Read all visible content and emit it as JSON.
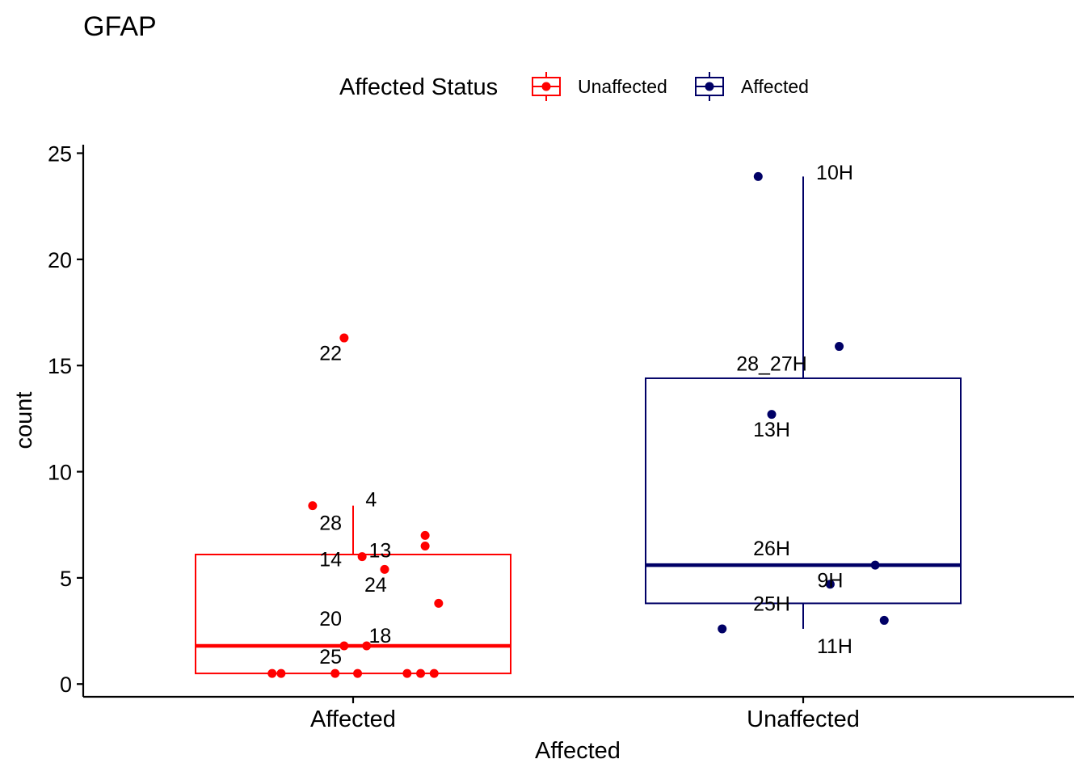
{
  "chart_data": {
    "type": "boxplot",
    "title": "GFAP",
    "xlabel": "Affected",
    "ylabel": "count",
    "ylim": [
      -0.6,
      25.4
    ],
    "yticks": [
      0,
      5,
      10,
      15,
      20,
      25
    ],
    "categories": [
      "Affected",
      "Unaffected"
    ],
    "legend": {
      "title": "Affected Status",
      "position": "top",
      "entries": [
        {
          "label": "Unaffected",
          "color": "#ff0000"
        },
        {
          "label": "Affected",
          "color": "#000066"
        }
      ]
    },
    "series": [
      {
        "name": "Unaffected",
        "category": "Affected",
        "color": "#ff0000",
        "box": {
          "q1": 0.5,
          "median": 1.8,
          "q3": 6.1,
          "whisker_low": 0.5,
          "whisker_high": 8.4
        },
        "points": [
          {
            "x": -0.02,
            "y": 16.3,
            "label": ""
          },
          {
            "x": -0.09,
            "y": 8.4,
            "label": ""
          },
          {
            "x": 0.16,
            "y": 7.0,
            "label": ""
          },
          {
            "x": 0.16,
            "y": 6.5,
            "label": ""
          },
          {
            "x": 0.02,
            "y": 6.0,
            "label": ""
          },
          {
            "x": 0.07,
            "y": 5.4,
            "label": ""
          },
          {
            "x": 0.19,
            "y": 3.8,
            "label": ""
          },
          {
            "x": -0.02,
            "y": 1.8,
            "label": ""
          },
          {
            "x": 0.03,
            "y": 1.8,
            "label": ""
          },
          {
            "x": -0.18,
            "y": 0.5,
            "label": ""
          },
          {
            "x": -0.16,
            "y": 0.5,
            "label": ""
          },
          {
            "x": -0.04,
            "y": 0.5,
            "label": ""
          },
          {
            "x": 0.01,
            "y": 0.5,
            "label": ""
          },
          {
            "x": 0.12,
            "y": 0.5,
            "label": ""
          },
          {
            "x": 0.15,
            "y": 0.5,
            "label": ""
          },
          {
            "x": 0.18,
            "y": 0.5,
            "label": ""
          }
        ],
        "annotations": [
          {
            "text": "22",
            "x": -0.05,
            "y": 15.6
          },
          {
            "text": "4",
            "x": 0.04,
            "y": 8.7
          },
          {
            "text": "28",
            "x": -0.05,
            "y": 7.6
          },
          {
            "text": "13",
            "x": 0.06,
            "y": 6.3
          },
          {
            "text": "14",
            "x": -0.05,
            "y": 5.9
          },
          {
            "text": "24",
            "x": 0.05,
            "y": 4.7
          },
          {
            "text": "20",
            "x": -0.05,
            "y": 3.1
          },
          {
            "text": "18",
            "x": 0.06,
            "y": 2.3
          },
          {
            "text": "25",
            "x": -0.05,
            "y": 1.3
          }
        ]
      },
      {
        "name": "Affected",
        "category": "Unaffected",
        "color": "#000066",
        "box": {
          "q1": 3.8,
          "median": 5.6,
          "q3": 14.4,
          "whisker_low": 2.6,
          "whisker_high": 23.9
        },
        "points": [
          {
            "x": -0.1,
            "y": 23.9,
            "label": ""
          },
          {
            "x": 0.08,
            "y": 15.9,
            "label": ""
          },
          {
            "x": -0.07,
            "y": 12.7,
            "label": ""
          },
          {
            "x": 0.16,
            "y": 5.6,
            "label": ""
          },
          {
            "x": 0.06,
            "y": 4.7,
            "label": ""
          },
          {
            "x": 0.18,
            "y": 3.0,
            "label": ""
          },
          {
            "x": -0.18,
            "y": 2.6,
            "label": ""
          }
        ],
        "annotations": [
          {
            "text": "10H",
            "x": 0.07,
            "y": 24.1
          },
          {
            "text": "28_27H",
            "x": -0.07,
            "y": 15.1
          },
          {
            "text": "13H",
            "x": -0.07,
            "y": 12.0
          },
          {
            "text": "26H",
            "x": -0.07,
            "y": 6.4
          },
          {
            "text": "9H",
            "x": 0.06,
            "y": 4.9
          },
          {
            "text": "25H",
            "x": -0.07,
            "y": 3.8
          },
          {
            "text": "11H",
            "x": 0.07,
            "y": 1.8
          }
        ]
      }
    ]
  }
}
